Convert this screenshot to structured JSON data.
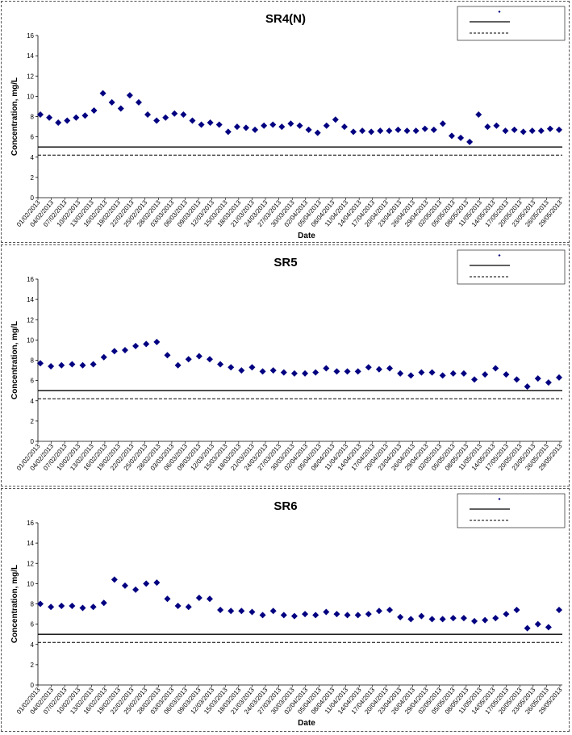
{
  "chart_data": [
    {
      "type": "scatter",
      "title": "SR4(N)",
      "xlabel": "Date",
      "ylabel": "Concentration, mg/L",
      "ylim": [
        0,
        16
      ],
      "yticks": [
        0,
        2,
        4,
        6,
        8,
        10,
        12,
        14,
        16
      ],
      "grid": false,
      "legend_position": "top-right",
      "x_tick_labels": [
        "01/02/2013",
        "04/02/2013",
        "07/02/2013",
        "10/02/2013",
        "13/02/2013",
        "16/02/2013",
        "19/02/2013",
        "22/02/2013",
        "25/02/2013",
        "28/02/2013",
        "03/03/2013",
        "06/03/2013",
        "09/03/2013",
        "12/03/2013",
        "15/03/2013",
        "18/03/2013",
        "21/03/2013",
        "24/03/2013",
        "27/03/2013",
        "30/03/2013",
        "02/04/2013",
        "05/04/2013",
        "08/04/2013",
        "11/04/2013",
        "14/04/2013",
        "17/04/2013",
        "20/04/2013",
        "23/04/2013",
        "26/04/2013",
        "29/04/2013",
        "02/05/2013",
        "05/05/2013",
        "08/05/2013",
        "11/05/2013",
        "14/05/2013",
        "17/05/2013",
        "20/05/2013",
        "23/05/2013",
        "26/05/2013",
        "29/05/2013"
      ],
      "series": [
        {
          "kind": "points",
          "marker": "diamond",
          "color": "#000080",
          "x": [
            "01/02/2013",
            "03/02/2013",
            "05/02/2013",
            "07/02/2013",
            "09/02/2013",
            "11/02/2013",
            "13/02/2013",
            "15/02/2013",
            "17/02/2013",
            "19/02/2013",
            "21/02/2013",
            "23/02/2013",
            "25/02/2013",
            "27/02/2013",
            "29/02/2013",
            "02/03/2013",
            "04/03/2013",
            "06/03/2013",
            "08/03/2013",
            "10/03/2013",
            "12/03/2013",
            "14/03/2013",
            "16/03/2013",
            "18/03/2013",
            "20/03/2013",
            "22/03/2013",
            "24/03/2013",
            "26/03/2013",
            "28/03/2013",
            "30/03/2013",
            "01/04/2013",
            "03/04/2013",
            "05/04/2013",
            "07/04/2013",
            "09/04/2013",
            "11/04/2013",
            "13/04/2013",
            "15/04/2013",
            "17/04/2013",
            "19/04/2013",
            "21/04/2013",
            "23/04/2013",
            "25/04/2013",
            "27/04/2013",
            "29/04/2013",
            "01/05/2013",
            "03/05/2013",
            "05/05/2013",
            "07/05/2013",
            "09/05/2013",
            "11/05/2013",
            "13/05/2013",
            "15/05/2013",
            "17/05/2013",
            "19/05/2013",
            "21/05/2013",
            "24/05/2013",
            "26/05/2013",
            "28/05/2013"
          ],
          "values": [
            8.2,
            7.9,
            7.4,
            7.6,
            7.9,
            8.1,
            8.6,
            10.3,
            9.4,
            8.8,
            10.1,
            9.4,
            8.2,
            7.6,
            7.9,
            8.3,
            8.2,
            7.6,
            7.2,
            7.4,
            7.2,
            6.5,
            7.0,
            6.9,
            6.7,
            7.1,
            7.2,
            7.0,
            7.3,
            7.1,
            6.7,
            6.4,
            7.1,
            7.7,
            7.0,
            6.5,
            6.6,
            6.5,
            6.6,
            6.6,
            6.7,
            6.6,
            6.6,
            6.8,
            6.7,
            7.3,
            6.1,
            5.9,
            5.5,
            8.2,
            7.0,
            7.1,
            6.6,
            6.7,
            6.5,
            6.6,
            6.6,
            6.8,
            6.7
          ]
        },
        {
          "kind": "hline",
          "style": "solid",
          "value": 5.0
        },
        {
          "kind": "hline",
          "style": "dashed",
          "value": 4.2
        }
      ]
    },
    {
      "type": "scatter",
      "title": "SR5",
      "xlabel": "",
      "ylabel": "Concentration, mg/L",
      "ylim": [
        0,
        16
      ],
      "yticks": [
        0,
        2,
        4,
        6,
        8,
        10,
        12,
        14,
        16
      ],
      "grid": false,
      "legend_position": "top-right",
      "x_tick_labels": [
        "01/02/2013",
        "04/02/2013",
        "07/02/2013",
        "10/02/2013",
        "13/02/2013",
        "16/02/2013",
        "19/02/2013",
        "22/02/2013",
        "25/02/2013",
        "28/02/2013",
        "03/03/2013",
        "06/03/2013",
        "09/03/2013",
        "12/03/2013",
        "15/03/2013",
        "18/03/2013",
        "21/03/2013",
        "24/03/2013",
        "27/03/2013",
        "30/03/2013",
        "02/04/2013",
        "05/04/2013",
        "08/04/2013",
        "11/04/2013",
        "14/04/2013",
        "17/04/2013",
        "20/04/2013",
        "23/04/2013",
        "26/04/2013",
        "29/04/2013",
        "02/05/2013",
        "05/05/2013",
        "08/05/2013",
        "11/05/2013",
        "14/05/2013",
        "17/05/2013",
        "20/05/2013",
        "23/05/2013",
        "26/05/2013",
        "29/05/2013"
      ],
      "series": [
        {
          "kind": "points",
          "marker": "diamond",
          "color": "#000080",
          "values": [
            7.7,
            7.4,
            7.5,
            7.6,
            7.5,
            7.6,
            8.3,
            8.9,
            9.0,
            9.4,
            9.6,
            9.8,
            8.5,
            7.5,
            8.1,
            8.4,
            8.1,
            7.6,
            7.3,
            7.0,
            7.3,
            6.9,
            7.0,
            6.8,
            6.7,
            6.7,
            6.8,
            7.2,
            6.9,
            6.9,
            6.9,
            7.3,
            7.1,
            7.2,
            6.7,
            6.5,
            6.8,
            6.8,
            6.5,
            6.7,
            6.7,
            6.1,
            6.6,
            7.2,
            6.6,
            6.1,
            5.4,
            6.2,
            5.8,
            6.3
          ]
        },
        {
          "kind": "hline",
          "style": "solid",
          "value": 5.0
        },
        {
          "kind": "hline",
          "style": "dashed",
          "value": 4.2
        }
      ]
    },
    {
      "type": "scatter",
      "title": "SR6",
      "xlabel": "Date",
      "ylabel": "Concentration, mg/L",
      "ylim": [
        0,
        16
      ],
      "yticks": [
        0,
        2,
        4,
        6,
        8,
        10,
        12,
        14,
        16
      ],
      "grid": false,
      "legend_position": "top-right",
      "x_tick_labels": [
        "01/02/2013",
        "04/02/2013",
        "07/02/2013",
        "10/02/2013",
        "13/02/2013",
        "16/02/2013",
        "19/02/2013",
        "22/02/2013",
        "25/02/2013",
        "28/02/2013",
        "03/03/2013",
        "06/03/2013",
        "09/03/2013",
        "12/03/2013",
        "15/03/2013",
        "18/03/2013",
        "21/03/2013",
        "24/03/2013",
        "27/03/2013",
        "30/03/2013",
        "02/04/2013",
        "05/04/2013",
        "08/04/2013",
        "11/04/2013",
        "14/04/2013",
        "17/04/2013",
        "20/04/2013",
        "23/04/2013",
        "26/04/2013",
        "29/04/2013",
        "02/05/2013",
        "05/05/2013",
        "08/05/2013",
        "11/05/2013",
        "14/05/2013",
        "17/05/2013",
        "20/05/2013",
        "23/05/2013",
        "26/05/2013",
        "29/05/2013"
      ],
      "series": [
        {
          "kind": "points",
          "marker": "diamond",
          "color": "#000080",
          "values": [
            8.0,
            7.7,
            7.8,
            7.8,
            7.6,
            7.7,
            8.1,
            10.4,
            9.8,
            9.4,
            10.0,
            10.1,
            8.5,
            7.8,
            7.7,
            8.6,
            8.5,
            7.4,
            7.3,
            7.3,
            7.2,
            6.9,
            7.3,
            6.9,
            6.8,
            7.0,
            6.9,
            7.2,
            7.0,
            6.9,
            6.9,
            7.0,
            7.3,
            7.4,
            6.7,
            6.5,
            6.8,
            6.5,
            6.5,
            6.6,
            6.6,
            6.3,
            6.4,
            6.6,
            7.0,
            7.4,
            5.6,
            6.0,
            5.7,
            7.4
          ]
        },
        {
          "kind": "hline",
          "style": "solid",
          "value": 5.0
        },
        {
          "kind": "hline",
          "style": "dashed",
          "value": 4.2
        }
      ]
    }
  ]
}
